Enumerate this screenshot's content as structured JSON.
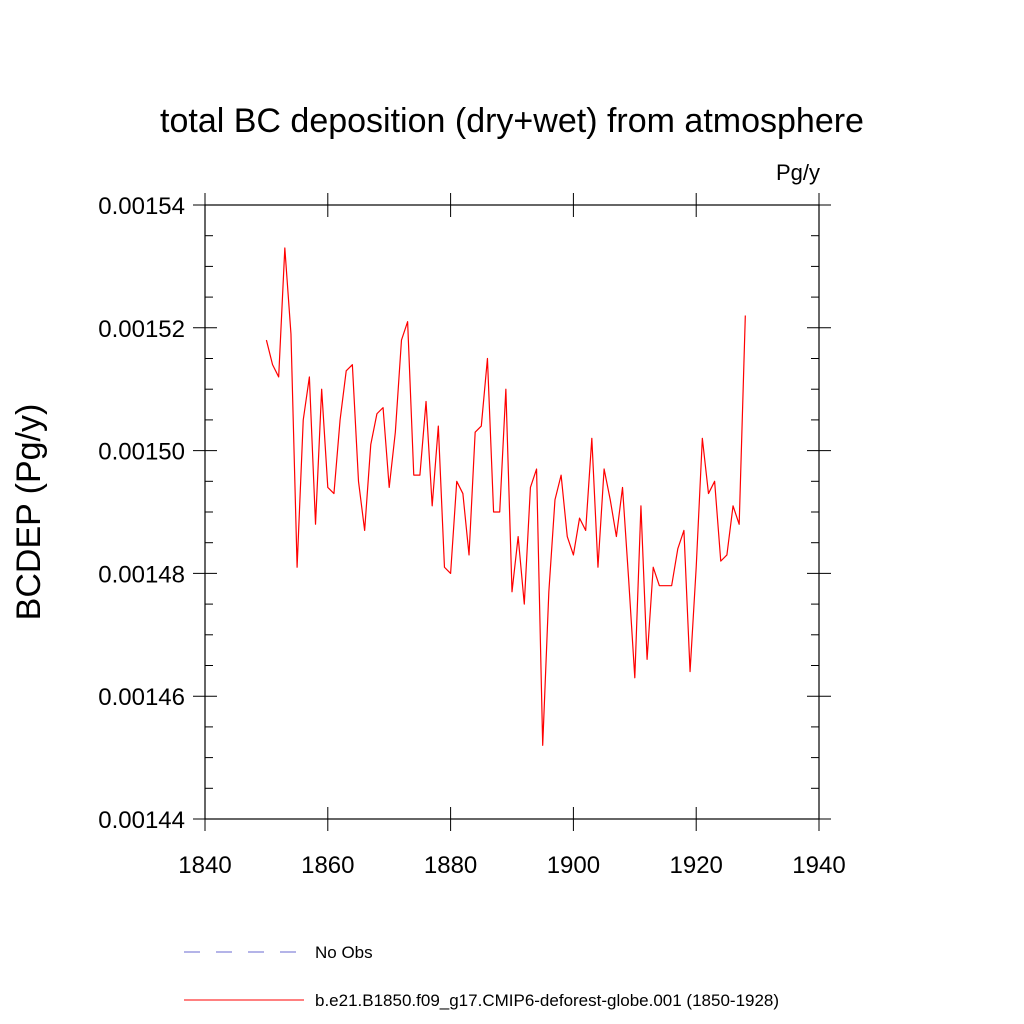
{
  "chart_data": {
    "type": "line",
    "title": "total BC deposition (dry+wet) from atmosphere",
    "units": "Pg/y",
    "ylabel": "BCDEP  (Pg/y)",
    "xlabel": "",
    "xlim": [
      1840,
      1940
    ],
    "ylim": [
      0.00144,
      0.00154
    ],
    "x_ticks": [
      1840,
      1860,
      1880,
      1900,
      1920,
      1940
    ],
    "x_tick_labels": [
      "1840",
      "1860",
      "1880",
      "1900",
      "1920",
      "1940"
    ],
    "y_ticks": [
      0.00144,
      0.00146,
      0.00148,
      0.0015,
      0.00152,
      0.00154
    ],
    "y_tick_labels": [
      "0.00144",
      "0.00146",
      "0.00148",
      "0.00150",
      "0.00152",
      "0.00154"
    ],
    "grid": false,
    "legend_position": "bottom",
    "series": [
      {
        "name": "No Obs",
        "color": "#6a6ad0",
        "dash": "dashed",
        "x": [],
        "values": []
      },
      {
        "name": "b.e21.B1850.f09_g17.CMIP6-deforest-globe.001 (1850-1928)",
        "color": "#ff0000",
        "dash": "solid",
        "x": [
          1850,
          1851,
          1852,
          1853,
          1854,
          1855,
          1856,
          1857,
          1858,
          1859,
          1860,
          1861,
          1862,
          1863,
          1864,
          1865,
          1866,
          1867,
          1868,
          1869,
          1870,
          1871,
          1872,
          1873,
          1874,
          1875,
          1876,
          1877,
          1878,
          1879,
          1880,
          1881,
          1882,
          1883,
          1884,
          1885,
          1886,
          1887,
          1888,
          1889,
          1890,
          1891,
          1892,
          1893,
          1894,
          1895,
          1896,
          1897,
          1898,
          1899,
          1900,
          1901,
          1902,
          1903,
          1904,
          1905,
          1906,
          1907,
          1908,
          1909,
          1910,
          1911,
          1912,
          1913,
          1914,
          1915,
          1916,
          1917,
          1918,
          1919,
          1920,
          1921,
          1922,
          1923,
          1924,
          1925,
          1926,
          1927,
          1928
        ],
        "values": [
          0.001518,
          0.001514,
          0.001512,
          0.001533,
          0.001519,
          0.001481,
          0.001505,
          0.001512,
          0.001488,
          0.00151,
          0.001494,
          0.001493,
          0.001505,
          0.001513,
          0.001514,
          0.001495,
          0.001487,
          0.001501,
          0.001506,
          0.001507,
          0.001494,
          0.001503,
          0.001518,
          0.001521,
          0.001496,
          0.001496,
          0.001508,
          0.001491,
          0.001504,
          0.001481,
          0.00148,
          0.001495,
          0.001493,
          0.001483,
          0.001503,
          0.001504,
          0.001515,
          0.00149,
          0.00149,
          0.00151,
          0.001477,
          0.001486,
          0.001475,
          0.001494,
          0.001497,
          0.001452,
          0.001477,
          0.001492,
          0.001496,
          0.001486,
          0.001483,
          0.001489,
          0.001487,
          0.001502,
          0.001481,
          0.001497,
          0.001492,
          0.001486,
          0.001494,
          0.001479,
          0.001463,
          0.001491,
          0.001466,
          0.001481,
          0.001478,
          0.001478,
          0.001478,
          0.001484,
          0.001487,
          0.001464,
          0.001481,
          0.001502,
          0.001493,
          0.001495,
          0.001482,
          0.001483,
          0.001491,
          0.001488,
          0.001522
        ]
      }
    ]
  }
}
